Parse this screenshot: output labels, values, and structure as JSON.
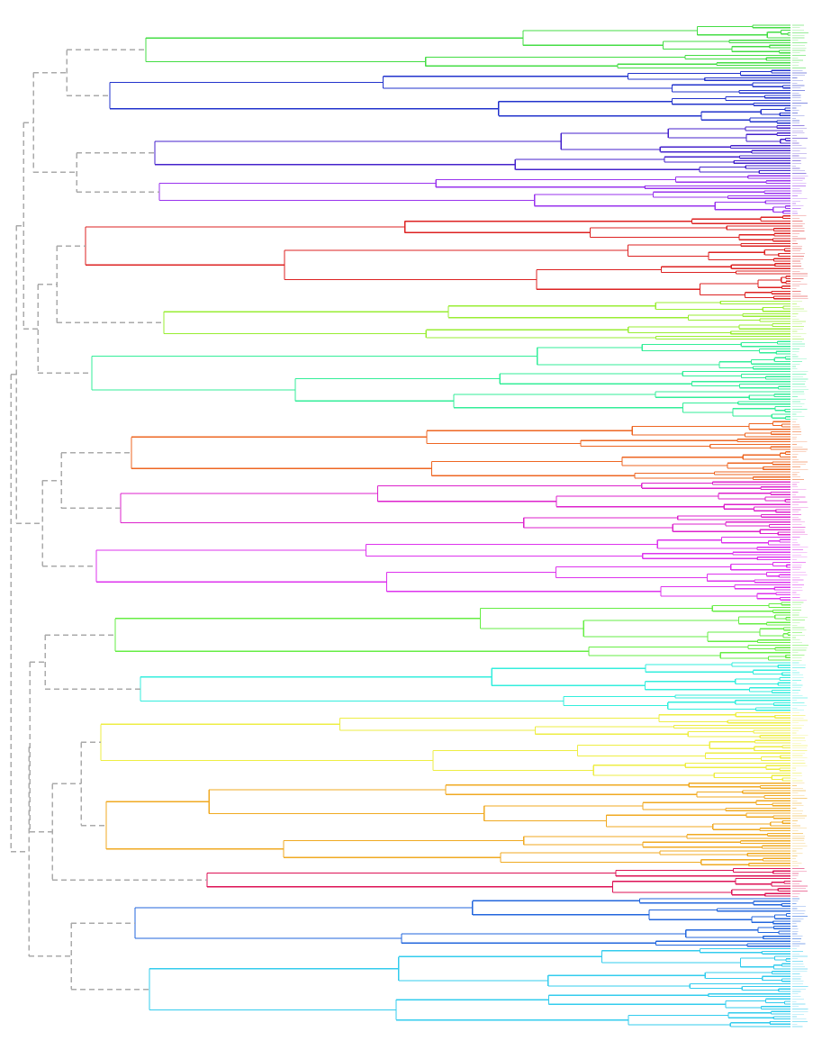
{
  "chart_data": {
    "type": "dendrogram",
    "orientation": "left-to-right",
    "leaf_count": 400,
    "leaf_labels_legible": false,
    "backbone_color": "#aaaaaa",
    "backbone_style": "dashed",
    "clusters": [
      {
        "color": "#44dd44",
        "leaves": 18
      },
      {
        "color": "#2233cc",
        "leaves": 22
      },
      {
        "color": "#4422cc",
        "leaves": 20
      },
      {
        "color": "#9933ee",
        "leaves": 16
      },
      {
        "color": "#dd2222",
        "leaves": 34
      },
      {
        "color": "#99ee33",
        "leaves": 16
      },
      {
        "color": "#33ee99",
        "leaves": 32
      },
      {
        "color": "#ee6622",
        "leaves": 24
      },
      {
        "color": "#dd22cc",
        "leaves": 22
      },
      {
        "color": "#dd33ee",
        "leaves": 26
      },
      {
        "color": "#66ee44",
        "leaves": 24
      },
      {
        "color": "#33eedd",
        "leaves": 20
      },
      {
        "color": "#eeee44",
        "leaves": 28
      },
      {
        "color": "#f0aa22",
        "leaves": 34
      },
      {
        "color": "#dd1155",
        "leaves": 12
      },
      {
        "color": "#2266dd",
        "leaves": 20
      },
      {
        "color": "#33ccee",
        "leaves": 32
      }
    ]
  }
}
